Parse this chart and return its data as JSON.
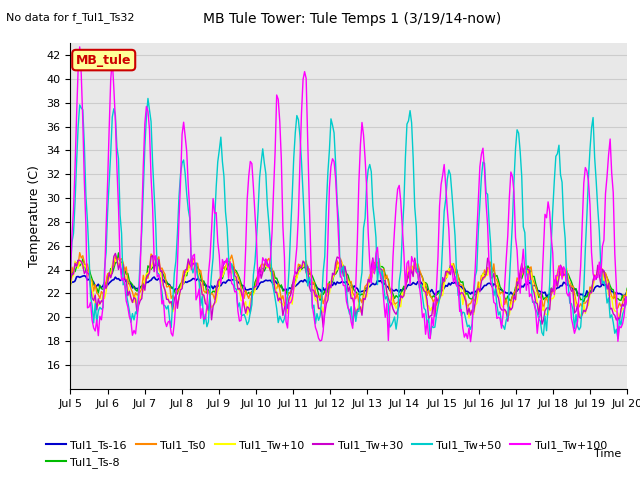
{
  "title": "MB Tule Tower: Tule Temps 1 (3/19/14-now)",
  "no_data_label": "No data for f_Tul1_Ts32",
  "ylabel": "Temperature (C)",
  "xlabel": "Time",
  "ylim": [
    14,
    43
  ],
  "yticks": [
    16,
    18,
    20,
    22,
    24,
    26,
    28,
    30,
    32,
    34,
    36,
    38,
    40,
    42
  ],
  "x_tick_labels": [
    "Jul 5",
    "Jul 6",
    "Jul 7",
    "Jul 8",
    "Jul 9",
    "Jul 10",
    "Jul 11",
    "Jul 12",
    "Jul 13",
    "Jul 14",
    "Jul 15",
    "Jul 16",
    "Jul 17",
    "Jul 18",
    "Jul 19",
    "Jul 20"
  ],
  "legend_box_label": "MB_tule",
  "legend_box_color": "#ffff99",
  "legend_box_border": "#cc0000",
  "series": [
    {
      "label": "Tul1_Ts-16",
      "color": "#0000cc"
    },
    {
      "label": "Tul1_Ts-8",
      "color": "#00bb00"
    },
    {
      "label": "Tul1_Ts0",
      "color": "#ff8800"
    },
    {
      "label": "Tul1_Tw+10",
      "color": "#ffff00"
    },
    {
      "label": "Tul1_Tw+30",
      "color": "#cc00cc"
    },
    {
      "label": "Tul1_Tw+50",
      "color": "#00cccc"
    },
    {
      "label": "Tul1_Tw+100",
      "color": "#ff00ff"
    }
  ],
  "background_color": "#ffffff",
  "grid_color": "#cccccc",
  "plot_bg_color": "#e8e8e8"
}
